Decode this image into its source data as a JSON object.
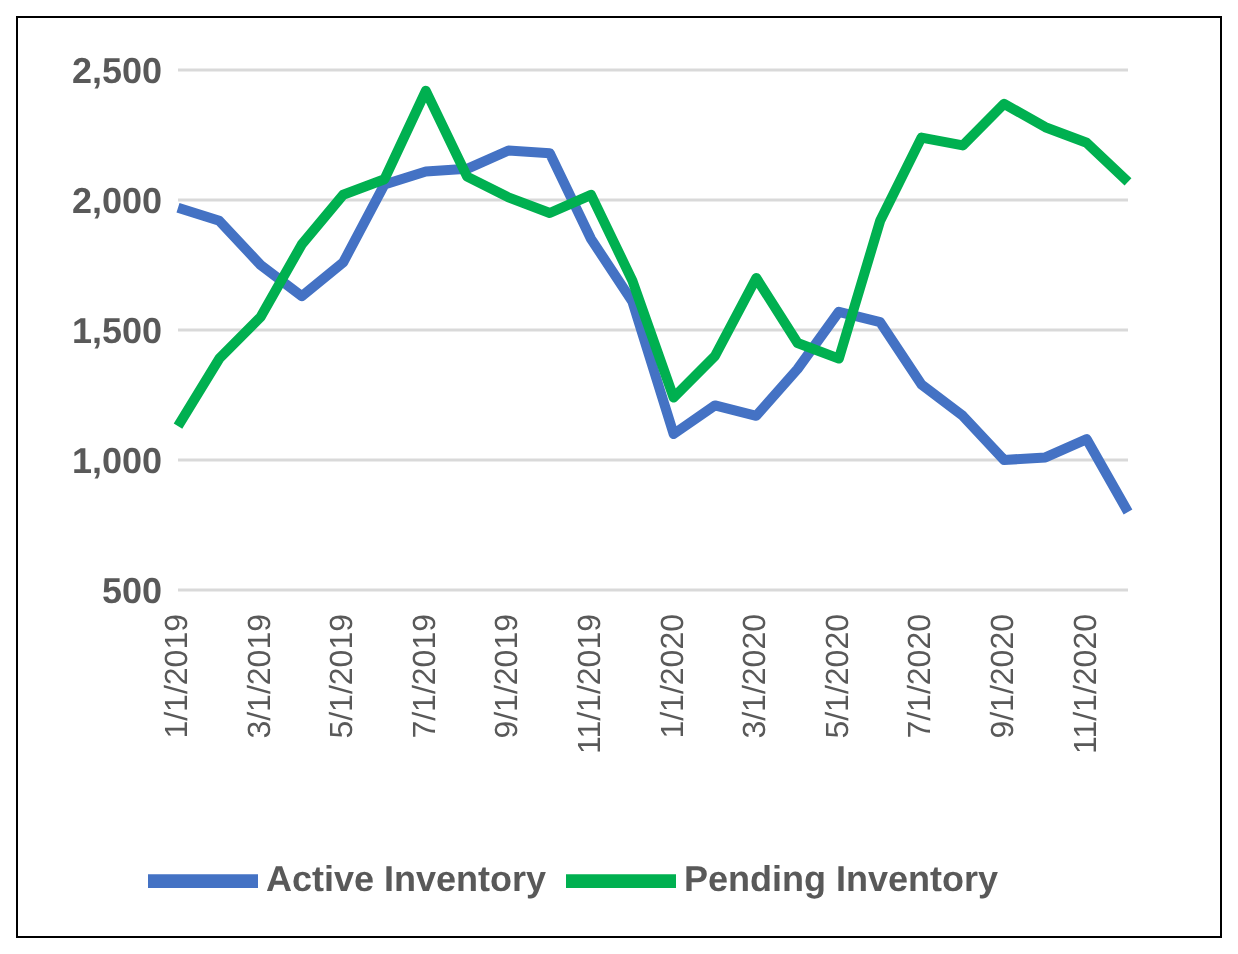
{
  "chart_data": {
    "type": "line",
    "categories": [
      "1/1/2019",
      null,
      "3/1/2019",
      null,
      "5/1/2019",
      null,
      "7/1/2019",
      null,
      "9/1/2019",
      null,
      "11/1/2019",
      null,
      "1/1/2020",
      null,
      "3/1/2020",
      null,
      "5/1/2020",
      null,
      "7/1/2020",
      null,
      "9/1/2020",
      null,
      "11/1/2020",
      null
    ],
    "series": [
      {
        "name": "Active Inventory",
        "color": "#4472c4",
        "values": [
          1970,
          1920,
          1750,
          1630,
          1760,
          2060,
          2110,
          2120,
          2190,
          2180,
          1850,
          1610,
          1100,
          1210,
          1170,
          1350,
          1570,
          1530,
          1290,
          1170,
          1000,
          1010,
          1080,
          800
        ]
      },
      {
        "name": "Pending Inventory",
        "color": "#00b050",
        "values": [
          1130,
          1390,
          1550,
          1830,
          2020,
          2080,
          2420,
          2090,
          2010,
          1950,
          2020,
          1690,
          1240,
          1400,
          1700,
          1450,
          1390,
          1920,
          2240,
          2210,
          2370,
          2280,
          2220,
          2070
        ]
      }
    ],
    "ylim": [
      500,
      2500
    ],
    "yticks": [
      {
        "value": 500,
        "label": "500"
      },
      {
        "value": 1000,
        "label": "1,000"
      },
      {
        "value": 1500,
        "label": "1,500"
      },
      {
        "value": 2000,
        "label": "2,000"
      },
      {
        "value": 2500,
        "label": "2,500"
      }
    ],
    "grid": "y",
    "legend": "bottom",
    "marker": "none",
    "line_style": "solid"
  }
}
